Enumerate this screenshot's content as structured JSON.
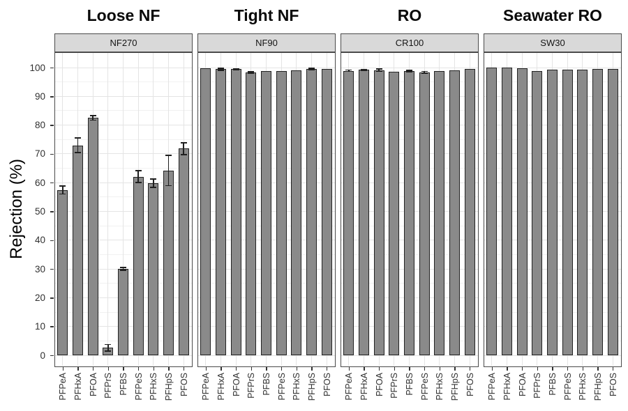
{
  "figure_name": "PFAS rejection by membrane type faceted bar chart",
  "colors": {
    "bar_fill": "#8a8a8a",
    "bar_border": "#222222",
    "strip_bg": "#d9d9d9",
    "panel_border": "#4a4a4a",
    "grid_major": "#e4e4e4",
    "grid_minor": "#f1f1f1",
    "tick_text": "#303030",
    "title_text": "#0a0a0a"
  },
  "chart_data": {
    "type": "bar",
    "title": "",
    "xlabel": "",
    "ylabel": "Rejection (%)",
    "ylim": [
      0,
      100
    ],
    "yticks": [
      0,
      10,
      20,
      30,
      40,
      50,
      60,
      70,
      80,
      90,
      100
    ],
    "grid": "horizontal major every 10 and minor every 5, vertical major at each category; light gray on white",
    "legend": "none",
    "error_bars": true,
    "categories": [
      "PFPeA",
      "PFHxA",
      "PFOA",
      "PFPrS",
      "PFBS",
      "PFPeS",
      "PFHxS",
      "PFHpS",
      "PFOS"
    ],
    "panels": [
      {
        "facet_title": "Loose NF",
        "strip_label": "NF270",
        "values": [
          57.4,
          73.0,
          82.5,
          2.6,
          30.0,
          62.1,
          59.8,
          64.2,
          71.8
        ],
        "errors": [
          1.4,
          2.6,
          0.8,
          1.1,
          0.5,
          2.1,
          1.4,
          5.3,
          2.1
        ]
      },
      {
        "facet_title": "Tight NF",
        "strip_label": "NF90",
        "values": [
          99.8,
          99.4,
          99.4,
          98.3,
          98.8,
          98.8,
          99.0,
          99.4,
          99.6
        ],
        "errors": [
          0,
          0.4,
          0.2,
          0.3,
          0,
          0,
          0,
          0.3,
          0
        ]
      },
      {
        "facet_title": "RO",
        "strip_label": "CR100",
        "values": [
          98.9,
          99.2,
          99.1,
          98.6,
          98.8,
          98.4,
          98.9,
          99.0,
          99.5
        ],
        "errors": [
          0.2,
          0.2,
          0.4,
          0,
          0.2,
          0.3,
          0,
          0,
          0
        ]
      },
      {
        "facet_title": "Seawater RO",
        "strip_label": "SW30",
        "values": [
          99.9,
          99.9,
          99.8,
          98.9,
          99.3,
          99.2,
          99.2,
          99.4,
          99.5
        ],
        "errors": [
          0,
          0,
          0,
          0,
          0,
          0,
          0,
          0,
          0
        ]
      }
    ]
  }
}
